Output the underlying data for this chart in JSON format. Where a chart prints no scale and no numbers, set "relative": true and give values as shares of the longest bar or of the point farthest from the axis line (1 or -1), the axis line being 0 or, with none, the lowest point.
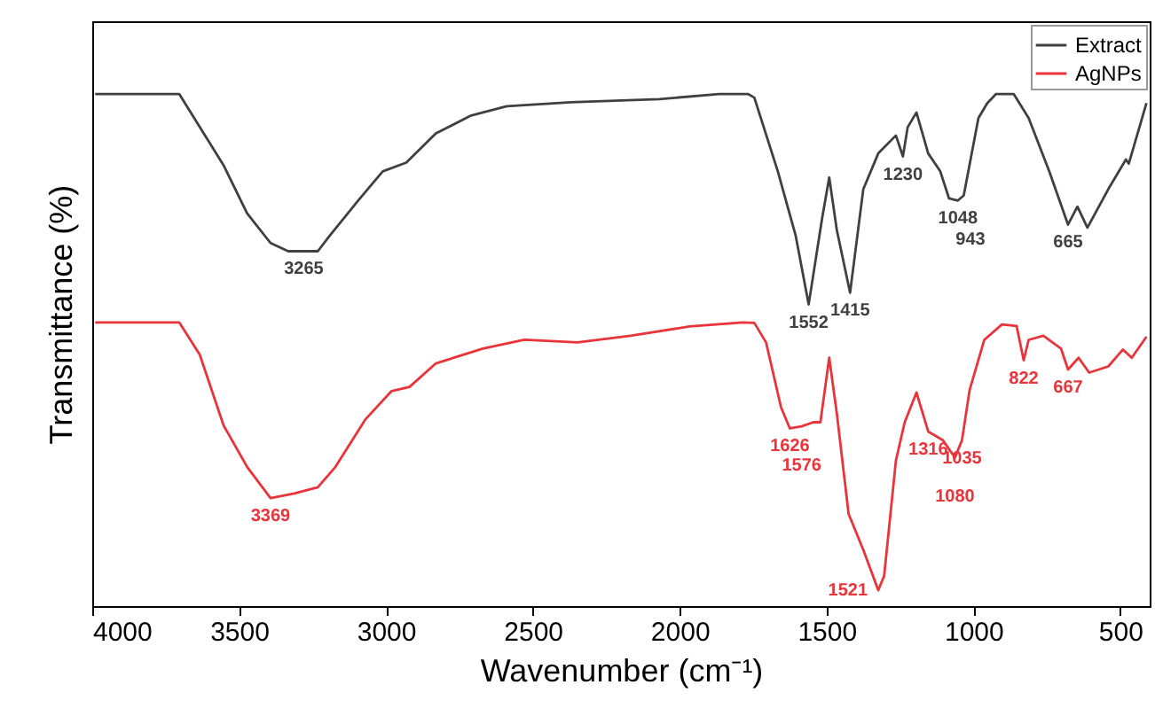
{
  "chart_data": {
    "type": "line",
    "xlabel": "Wavenumber (cm⁻¹)",
    "ylabel": "Transmittance (%)",
    "relative": true,
    "xlim": [
      4000,
      400
    ],
    "xticks": [
      4000,
      3500,
      3000,
      2500,
      2000,
      1500,
      1000,
      500
    ],
    "grid": false,
    "legend": "top right",
    "line_style": "solid",
    "series": [
      {
        "name": "Extract",
        "color": "#404040",
        "x": [
          3990,
          3704,
          3553,
          3473,
          3393,
          3333,
          3232,
          3192,
          3093,
          3011,
          2931,
          2830,
          2710,
          2589,
          2370,
          2069,
          1866,
          1768,
          1746,
          1666,
          1605,
          1561,
          1515,
          1491,
          1465,
          1420,
          1375,
          1324,
          1264,
          1240,
          1224,
          1194,
          1154,
          1113,
          1083,
          1053,
          1033,
          983,
          953,
          923,
          863,
          812,
          742,
          678,
          646,
          612,
          541,
          481,
          471,
          411
        ],
        "values": [
          1.0,
          1.0,
          0.861,
          0.767,
          0.709,
          0.693,
          0.693,
          0.723,
          0.793,
          0.849,
          0.866,
          0.923,
          0.958,
          0.976,
          0.984,
          0.99,
          1.0,
          1.0,
          0.993,
          0.849,
          0.723,
          0.589,
          0.758,
          0.837,
          0.734,
          0.612,
          0.814,
          0.884,
          0.919,
          0.878,
          0.935,
          0.964,
          0.884,
          0.849,
          0.796,
          0.792,
          0.802,
          0.953,
          0.982,
          1.0,
          1.0,
          0.953,
          0.849,
          0.745,
          0.78,
          0.739,
          0.814,
          0.872,
          0.864,
          0.982
        ]
      },
      {
        "name": "AgNPs",
        "color": "#e8343a",
        "x": [
          3990,
          3704,
          3634,
          3553,
          3473,
          3393,
          3312,
          3232,
          3172,
          3071,
          2981,
          2920,
          2830,
          2670,
          2529,
          2348,
          2167,
          1967,
          1786,
          1746,
          1706,
          1655,
          1625,
          1585,
          1545,
          1521,
          1491,
          1465,
          1425,
          1375,
          1324,
          1304,
          1264,
          1234,
          1194,
          1154,
          1104,
          1063,
          1039,
          1013,
          963,
          903,
          853,
          829,
          812,
          762,
          702,
          678,
          642,
          606,
          541,
          491,
          461,
          411
        ],
        "values": [
          0.554,
          0.554,
          0.491,
          0.353,
          0.272,
          0.211,
          0.22,
          0.232,
          0.272,
          0.364,
          0.42,
          0.428,
          0.474,
          0.503,
          0.52,
          0.515,
          0.528,
          0.546,
          0.554,
          0.553,
          0.515,
          0.388,
          0.347,
          0.351,
          0.359,
          0.359,
          0.485,
          0.376,
          0.18,
          0.11,
          0.031,
          0.059,
          0.284,
          0.359,
          0.417,
          0.341,
          0.324,
          0.29,
          0.324,
          0.422,
          0.52,
          0.55,
          0.547,
          0.48,
          0.52,
          0.528,
          0.503,
          0.462,
          0.485,
          0.456,
          0.468,
          0.501,
          0.485,
          0.526
        ]
      }
    ],
    "annotations": [
      {
        "text": "3265",
        "x": 3280,
        "y": 0.693
      },
      {
        "text": "1552",
        "x": 1561,
        "y": 0.589
      },
      {
        "text": "1415",
        "x": 1420,
        "y": 0.612
      },
      {
        "text": "1230",
        "x": 1240,
        "y": 0.878
      },
      {
        "text": "1048",
        "x": 1053,
        "y": 0.792
      },
      {
        "text": "943",
        "x": 1010,
        "y": 0.792
      },
      {
        "text": "665",
        "x": 678,
        "y": 0.745
      },
      {
        "text": "3369",
        "x": 3393,
        "y": 0.211
      },
      {
        "text": "1626",
        "x": 1625,
        "y": 0.347
      },
      {
        "text": "1576",
        "x": 1585,
        "y": 0.351
      },
      {
        "text": "1521",
        "x": 1324,
        "y": 0.031
      },
      {
        "text": "1316",
        "x": 1154,
        "y": 0.341
      },
      {
        "text": "1035",
        "x": 1039,
        "y": 0.324
      },
      {
        "text": "1080",
        "x": 1063,
        "y": 0.29
      },
      {
        "text": "822",
        "x": 829,
        "y": 0.48
      },
      {
        "text": "667",
        "x": 678,
        "y": 0.462
      }
    ]
  }
}
